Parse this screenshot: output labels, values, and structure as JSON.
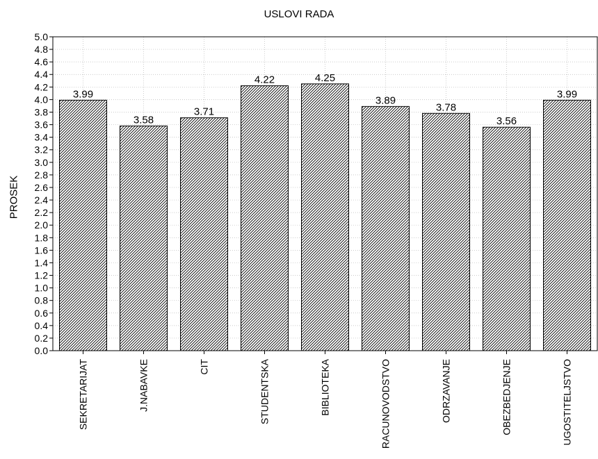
{
  "chart_data": {
    "type": "bar",
    "title": "USLOVI RADA",
    "xlabel": "",
    "ylabel": "PROSEK",
    "ylim": [
      0,
      5
    ],
    "yticks": [
      "0.0",
      "0.2",
      "0.4",
      "0.6",
      "0.8",
      "1.0",
      "1.2",
      "1.4",
      "1.6",
      "1.8",
      "2.0",
      "2.2",
      "2.4",
      "2.6",
      "2.8",
      "3.0",
      "3.2",
      "3.4",
      "3.6",
      "3.8",
      "4.0",
      "4.2",
      "4.4",
      "4.6",
      "4.8",
      "5.0"
    ],
    "categories": [
      "SEKRETARIJAT",
      "J.NABAVKE",
      "CIT",
      "STUDENTSKA",
      "BIBLIOTEKA",
      "RACUNOVODSTVO",
      "ODRZAVANJE",
      "OBEZBEDJENJE",
      "UGOSTITELJSTVO"
    ],
    "values": [
      3.99,
      3.58,
      3.71,
      4.22,
      4.25,
      3.89,
      3.78,
      3.56,
      3.99
    ],
    "value_labels": [
      "3.99",
      "3.58",
      "3.71",
      "4.22",
      "4.25",
      "3.89",
      "3.78",
      "3.56",
      "3.99"
    ],
    "grid": true,
    "bar_pattern": "diagonal-hatch",
    "bar_color": "#000000"
  }
}
